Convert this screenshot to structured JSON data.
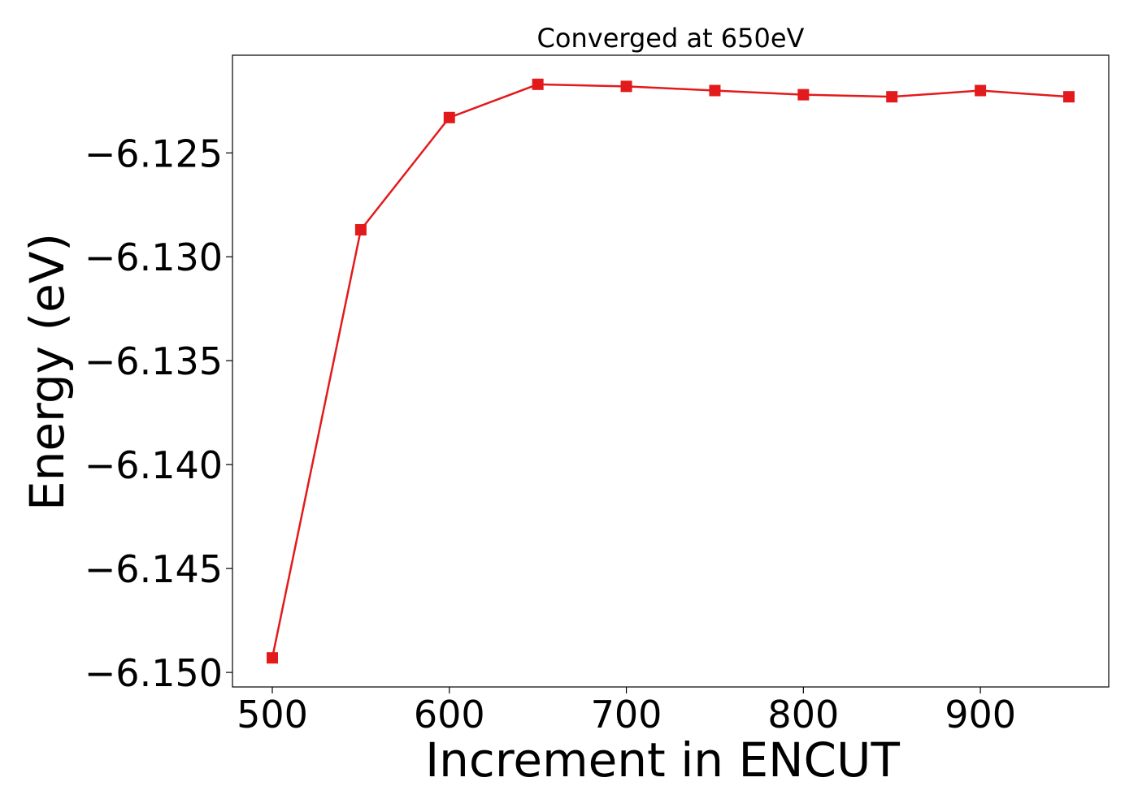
{
  "chart_data": {
    "type": "line",
    "title": "Converged at 650eV",
    "xlabel": "Increment in ENCUT",
    "ylabel": "Energy (eV)",
    "x": [
      500,
      550,
      600,
      650,
      700,
      750,
      800,
      850,
      900,
      950
    ],
    "series": [
      {
        "values": [
          -6.1493,
          -6.1287,
          -6.1233,
          -6.1217,
          -6.1218,
          -6.122,
          -6.1222,
          -6.1223,
          -6.122,
          -6.1223
        ],
        "color": "#e31a1c",
        "marker": "square"
      }
    ],
    "xlim": [
      477.5,
      972.5
    ],
    "ylim": [
      -6.1507,
      -6.1203
    ],
    "xticks": [
      500,
      600,
      700,
      800,
      900
    ],
    "yticks": [
      -6.125,
      -6.13,
      -6.135,
      -6.14,
      -6.145,
      -6.15
    ],
    "xtick_labels": [
      "500",
      "600",
      "700",
      "800",
      "900"
    ],
    "ytick_labels": [
      "−6.125",
      "−6.130",
      "−6.135",
      "−6.140",
      "−6.145",
      "−6.150"
    ],
    "grid": false,
    "legend": "none"
  }
}
